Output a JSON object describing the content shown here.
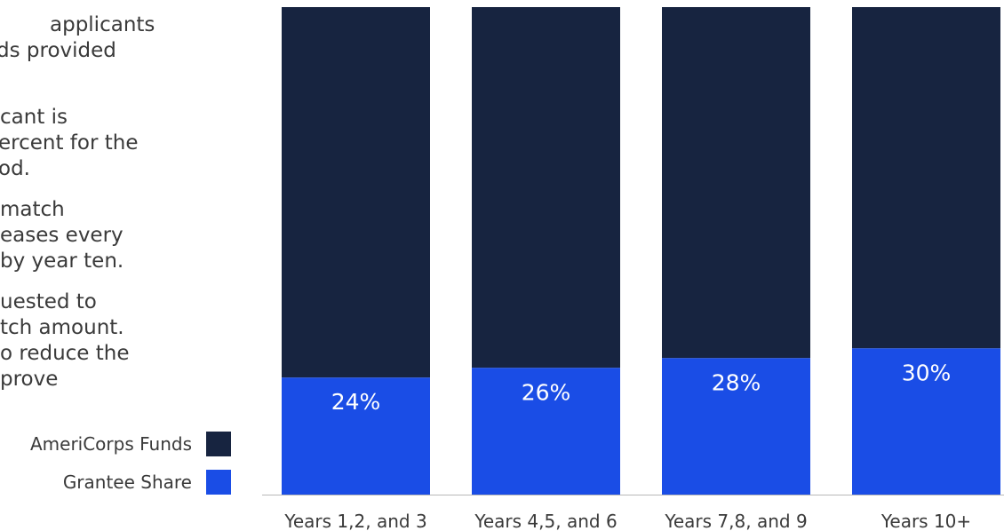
{
  "side_text": {
    "lines": [
      "applicants",
      "ds provided",
      "cant is",
      "ercent for the",
      "od.",
      "match",
      "eases every",
      "by year ten.",
      "uested to",
      "tch amount.",
      "o reduce the",
      "prove"
    ]
  },
  "colors": {
    "americorps_funds": "#172440",
    "grantee_share": "#1a4de6",
    "axis": "#b8b8b8",
    "text": "#3a3a3a",
    "data_label": "#ffffff"
  },
  "chart_data": {
    "type": "bar",
    "stacked": true,
    "percent_stacked": true,
    "categories": [
      "Years 1,2, and 3",
      "Years 4,5, and 6",
      "Years 7,8, and 9",
      "Years 10+"
    ],
    "series": [
      {
        "name": "AmeriCorps Funds",
        "values": [
          76,
          74,
          72,
          70
        ]
      },
      {
        "name": "Grantee Share",
        "values": [
          24,
          26,
          28,
          30
        ]
      }
    ],
    "data_labels": [
      "24%",
      "26%",
      "28%",
      "30%"
    ],
    "ylim": [
      0,
      100
    ],
    "grid": false,
    "legend_position": "left"
  }
}
